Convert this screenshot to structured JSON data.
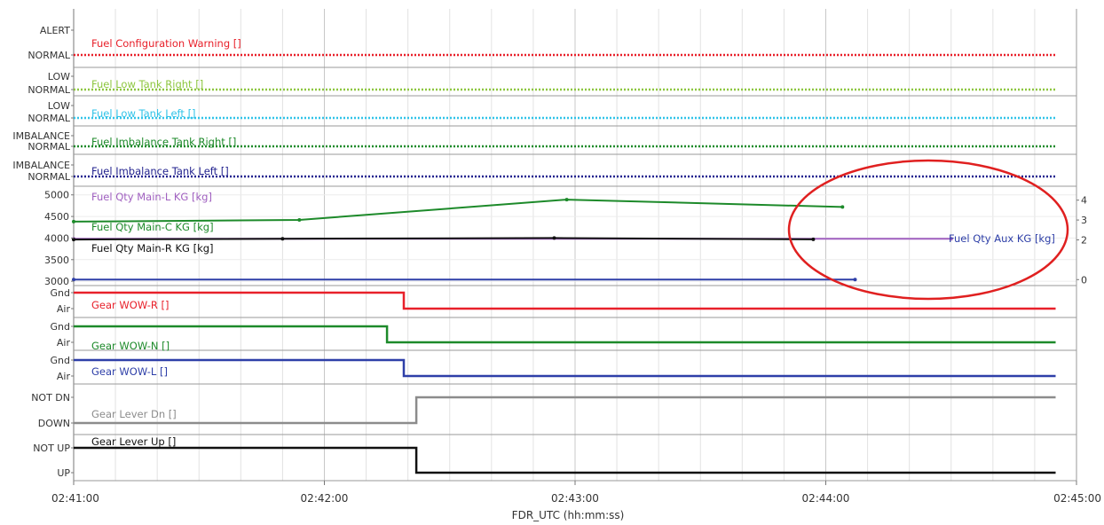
{
  "chart_data": {
    "type": "line",
    "xlabel": "FDR_UTC (hh:mm:ss)",
    "x_ticks": [
      "02:41:00",
      "02:42:00",
      "02:43:00",
      "02:44:00",
      "02:45:00"
    ],
    "x_range": [
      "02:41:00",
      "02:45:00"
    ],
    "grid": true,
    "panels": [
      {
        "id": "fuel-config",
        "states": [
          "ALERT",
          "NORMAL"
        ],
        "series": [
          {
            "name": "Fuel Configuration Warning []",
            "color": "#e8202a",
            "style": "dotted",
            "points": [
              [
                "02:41:00",
                "NORMAL"
              ],
              [
                "02:44:55",
                "NORMAL"
              ]
            ]
          }
        ]
      },
      {
        "id": "fuel-low-right",
        "states": [
          "LOW",
          "NORMAL"
        ],
        "series": [
          {
            "name": "Fuel Low Tank Right []",
            "color": "#8dc63f",
            "style": "dotted",
            "points": [
              [
                "02:41:00",
                "NORMAL"
              ],
              [
                "02:44:55",
                "NORMAL"
              ]
            ]
          }
        ]
      },
      {
        "id": "fuel-low-left",
        "states": [
          "LOW",
          "NORMAL"
        ],
        "series": [
          {
            "name": "Fuel Low Tank Left []",
            "color": "#31c3e8",
            "style": "dotted",
            "points": [
              [
                "02:41:00",
                "NORMAL"
              ],
              [
                "02:44:55",
                "NORMAL"
              ]
            ]
          }
        ]
      },
      {
        "id": "fuel-imb-right",
        "states": [
          "IMBALANCE",
          "NORMAL"
        ],
        "series": [
          {
            "name": "Fuel Imbalance Tank Right []",
            "color": "#1d8a2a",
            "style": "dotted",
            "points": [
              [
                "02:41:00",
                "NORMAL"
              ],
              [
                "02:44:55",
                "NORMAL"
              ]
            ]
          }
        ]
      },
      {
        "id": "fuel-imb-left",
        "states": [
          "IMBALANCE",
          "NORMAL"
        ],
        "series": [
          {
            "name": "Fuel Imbalance Tank Left []",
            "color": "#23238f",
            "style": "dotted",
            "points": [
              [
                "02:41:00",
                "NORMAL"
              ],
              [
                "02:44:55",
                "NORMAL"
              ]
            ]
          }
        ]
      },
      {
        "id": "fuel-qty",
        "left_ticks": [
          3000,
          3500,
          4000,
          4500,
          5000
        ],
        "left_range": [
          2900,
          5200
        ],
        "right_ticks": [
          0,
          2,
          3,
          4
        ],
        "right_range": [
          -0.3,
          4.7
        ],
        "series": [
          {
            "name": "Fuel Qty Main-L KG [kg]",
            "color": "#a060c0",
            "axis": "left",
            "points": [
              [
                "02:41:00",
                3985
              ],
              [
                "02:44:30",
                3985
              ]
            ]
          },
          {
            "name": "Fuel Qty Main-C KG [kg]",
            "color": "#1d8a2a",
            "axis": "left",
            "points": [
              [
                "02:41:00",
                4380
              ],
              [
                "02:41:54",
                4420
              ],
              [
                "02:42:58",
                4890
              ],
              [
                "02:44:04",
                4720
              ]
            ]
          },
          {
            "name": "Fuel Qty Main-R KG [kg]",
            "color": "#111111",
            "axis": "left",
            "points": [
              [
                "02:41:00",
                3965
              ],
              [
                "02:41:50",
                3985
              ],
              [
                "02:42:55",
                4000
              ],
              [
                "02:43:57",
                3970
              ]
            ]
          },
          {
            "name": "Fuel Qty Aux KG [kg]",
            "color": "#2e3fa8",
            "axis": "right",
            "points": [
              [
                "02:41:00",
                0
              ],
              [
                "02:44:07",
                0
              ]
            ]
          }
        ]
      },
      {
        "id": "wow-r",
        "states": [
          "Gnd",
          "Air"
        ],
        "series": [
          {
            "name": "Gear WOW-R []",
            "color": "#e8202a",
            "style": "step",
            "points": [
              [
                "02:41:00",
                "Gnd"
              ],
              [
                "02:42:19",
                "Gnd"
              ],
              [
                "02:42:19",
                "Air"
              ],
              [
                "02:44:55",
                "Air"
              ]
            ]
          }
        ]
      },
      {
        "id": "wow-n",
        "states": [
          "Gnd",
          "Air"
        ],
        "series": [
          {
            "name": "Gear WOW-N []",
            "color": "#1d8a2a",
            "style": "step",
            "points": [
              [
                "02:41:00",
                "Gnd"
              ],
              [
                "02:42:15",
                "Gnd"
              ],
              [
                "02:42:15",
                "Air"
              ],
              [
                "02:44:55",
                "Air"
              ]
            ]
          }
        ]
      },
      {
        "id": "wow-l",
        "states": [
          "Gnd",
          "Air"
        ],
        "series": [
          {
            "name": "Gear WOW-L []",
            "color": "#2e3fa8",
            "style": "step",
            "points": [
              [
                "02:41:00",
                "Gnd"
              ],
              [
                "02:42:19",
                "Gnd"
              ],
              [
                "02:42:19",
                "Air"
              ],
              [
                "02:44:55",
                "Air"
              ]
            ]
          }
        ]
      },
      {
        "id": "lever-dn",
        "states": [
          "NOT DN",
          "DOWN"
        ],
        "series": [
          {
            "name": "Gear Lever Dn []",
            "color": "#8c8c8c",
            "style": "step",
            "points": [
              [
                "02:41:00",
                "DOWN"
              ],
              [
                "02:42:22",
                "DOWN"
              ],
              [
                "02:42:22",
                "NOT DN"
              ],
              [
                "02:44:55",
                "NOT DN"
              ]
            ]
          }
        ]
      },
      {
        "id": "lever-up",
        "states": [
          "NOT UP",
          "UP"
        ],
        "series": [
          {
            "name": "Gear Lever Up []",
            "color": "#111111",
            "style": "step",
            "points": [
              [
                "02:41:00",
                "NOT UP"
              ],
              [
                "02:42:22",
                "NOT UP"
              ],
              [
                "02:42:22",
                "UP"
              ],
              [
                "02:44:55",
                "UP"
              ]
            ]
          }
        ]
      }
    ],
    "annotations": [
      {
        "type": "ellipse",
        "color": "#e02020",
        "around": "Fuel Qty Aux KG [kg]"
      }
    ]
  }
}
